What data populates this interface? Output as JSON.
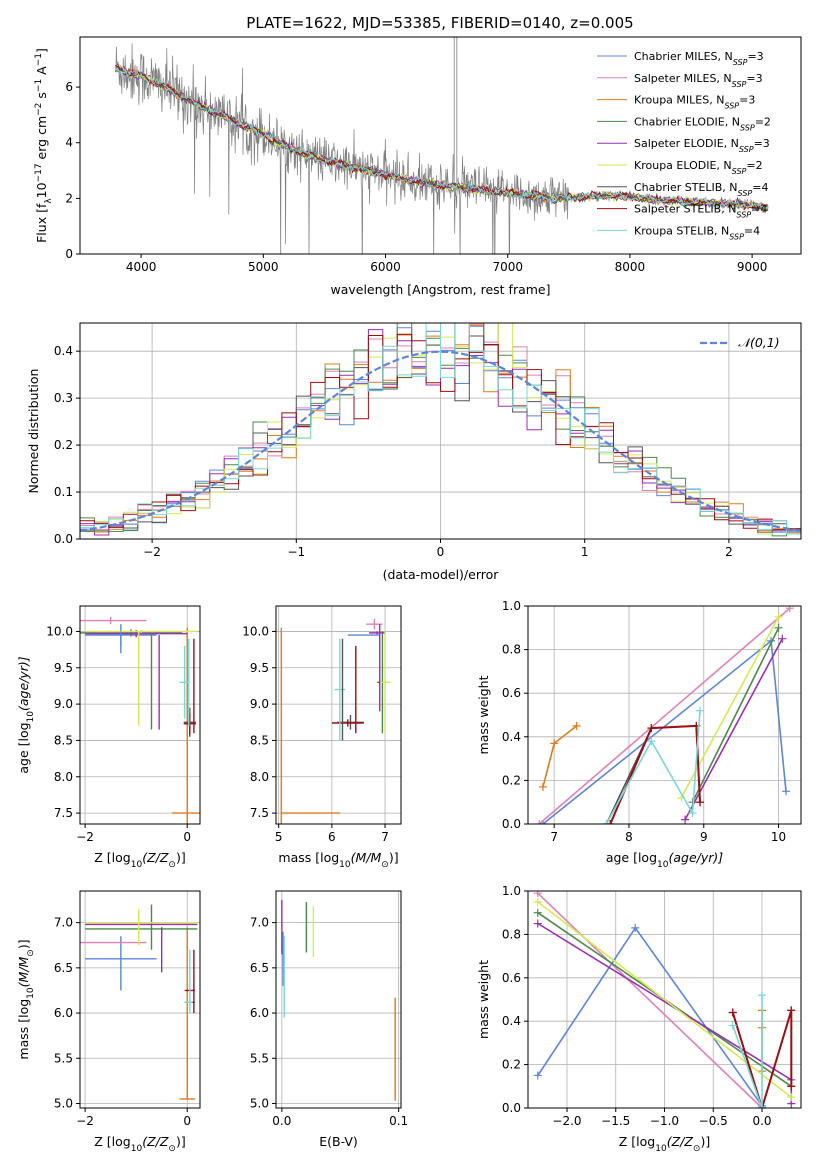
{
  "colors": {
    "Chabrier MILES": "#5b86d9",
    "Salpeter MILES": "#e07fb8",
    "Kroupa MILES": "#e07a1c",
    "Chabrier ELODIE": "#4a8a4a",
    "Salpeter ELODIE": "#9b2fb5",
    "Kroupa ELODIE": "#d6ea52",
    "Chabrier STELIB": "#555555",
    "Salpeter STELIB": "#9e0e12",
    "Kroupa STELIB": "#79d8d8",
    "data": "#808080",
    "normal": "#5b86d9"
  },
  "chart_data": [
    {
      "id": "spectrum",
      "type": "line",
      "title": "PLATE=1622, MJD=53385, FIBERID=0140, z=0.005",
      "xlabel": "wavelength [Angstrom, rest frame]",
      "ylabel": "Flux [f",
      "ylabel_parts": [
        "Flux [f",
        "λ",
        "10",
        "−17",
        " erg cm",
        "−2",
        " s",
        "−1",
        " A",
        "−1",
        "]"
      ],
      "xlim": [
        3500,
        9400
      ],
      "ylim": [
        0,
        7.8
      ],
      "xticks": [
        4000,
        5000,
        6000,
        7000,
        8000,
        9000
      ],
      "yticks": [
        0,
        2,
        4,
        6
      ],
      "legend_placement": "upper-right",
      "legend": [
        {
          "name": "Chabrier MILES",
          "nssp": "3"
        },
        {
          "name": "Salpeter MILES",
          "nssp": "3"
        },
        {
          "name": "Kroupa MILES",
          "nssp": "3"
        },
        {
          "name": "Chabrier ELODIE",
          "nssp": "2"
        },
        {
          "name": "Salpeter ELODIE",
          "nssp": "3"
        },
        {
          "name": "Kroupa ELODIE",
          "nssp": "2"
        },
        {
          "name": "Chabrier STELIB",
          "nssp": "4"
        },
        {
          "name": "Salpeter STELIB",
          "nssp": "4"
        },
        {
          "name": "Kroupa STELIB",
          "nssp": "4"
        }
      ],
      "continuum": {
        "x": [
          3800,
          3900,
          4000,
          4200,
          4400,
          4600,
          4800,
          5000,
          5200,
          5400,
          5600,
          5800,
          6000,
          6200,
          6400,
          6600,
          6800,
          7000,
          7200,
          7400,
          7600,
          7800,
          8000,
          8200,
          8400,
          8600,
          8800,
          9000,
          9100
        ],
        "y": [
          6.7,
          6.5,
          6.4,
          6.0,
          5.5,
          5.1,
          4.7,
          4.3,
          3.85,
          3.5,
          3.25,
          3.05,
          2.85,
          2.65,
          2.5,
          2.4,
          2.3,
          2.2,
          2.1,
          2.0,
          2.05,
          2.1,
          2.05,
          1.95,
          1.9,
          1.85,
          1.8,
          1.75,
          1.65
        ]
      },
      "emission_lines": [
        {
          "x": 6563,
          "y": 7.8
        },
        {
          "x": 6583,
          "y": 7.8
        }
      ]
    },
    {
      "id": "residuals",
      "type": "histogram",
      "xlabel": "(data-model)/error",
      "ylabel": "Normed distribution",
      "xlim": [
        -2.5,
        2.5
      ],
      "ylim": [
        0,
        0.46
      ],
      "xticks": [
        -2,
        -1,
        0,
        1,
        2
      ],
      "yticks": [
        0.0,
        0.1,
        0.2,
        0.3,
        0.4
      ],
      "legend_placement": "upper-right",
      "reference_label": "𝒩(0,1)",
      "bin_width": 0.1
    },
    {
      "id": "age-vs-z",
      "type": "errorbar",
      "xlabel": "Z [log",
      "xlabel_parts": [
        "Z [log",
        "10",
        "(Z/Z",
        "⊙",
        ")]"
      ],
      "ylabel_parts": [
        "age  [log",
        "10",
        "(age/yr)]"
      ],
      "xlim": [
        -2.1,
        0.25
      ],
      "ylim": [
        7.35,
        10.35
      ],
      "xticks": [
        -2,
        0
      ],
      "yticks": [
        7.5,
        8.0,
        8.5,
        9.0,
        9.5,
        10.0
      ],
      "points": [
        {
          "model": "Chabrier MILES",
          "x": -1.3,
          "xerr": 0.7,
          "y": 9.95,
          "yerr": 0.15
        },
        {
          "model": "Salpeter MILES",
          "x": -1.5,
          "xerr": 0.7,
          "y": 10.15,
          "yerr": 0.05
        },
        {
          "model": "Kroupa MILES",
          "x": 0.0,
          "xerr": 0.3,
          "y": 7.5,
          "yerr": 2.55
        },
        {
          "model": "Chabrier ELODIE",
          "x": -1.1,
          "xerr": 1.0,
          "y": 9.98,
          "yerr": 0.05
        },
        {
          "model": "Salpeter ELODIE",
          "x": -1.0,
          "xerr": 1.0,
          "y": 9.97,
          "yerr": 0.05
        },
        {
          "model": "Kroupa ELODIE",
          "x": -0.9,
          "xerr": 1.1,
          "y": 10.0,
          "yerr": 0.02
        },
        {
          "model": "Chabrier STELIB",
          "x": 0.05,
          "xerr": 0.12,
          "y": 8.75,
          "yerr": 0.2
        },
        {
          "model": "Salpeter STELIB",
          "x": 0.05,
          "xerr": 0.12,
          "y": 8.73,
          "yerr": 0.15
        },
        {
          "model": "Kroupa STELIB",
          "x": -0.05,
          "xerr": 0.1,
          "y": 9.3,
          "yerr": 0.5
        },
        {
          "model": "Chabrier ELODIE",
          "x": -0.7,
          "xerr": 0.0,
          "y": 9.3,
          "yerr": 0.65
        },
        {
          "model": "Salpeter ELODIE",
          "x": -0.55,
          "xerr": 0.0,
          "y": 9.3,
          "yerr": 0.65
        },
        {
          "model": "Kroupa ELODIE",
          "x": -0.95,
          "xerr": 0.0,
          "y": 9.35,
          "yerr": 0.65
        },
        {
          "model": "Chabrier MILES",
          "x": -1.3,
          "xerr": 0.0,
          "y": 9.85,
          "yerr": 0.15
        },
        {
          "model": "Salpeter STELIB",
          "x": 0.13,
          "xerr": 0.0,
          "y": 9.25,
          "yerr": 0.65
        },
        {
          "model": "Kroupa STELIB",
          "x": 0.03,
          "xerr": 0.0,
          "y": 9.3,
          "yerr": 0.6
        }
      ]
    },
    {
      "id": "age-vs-mass",
      "type": "errorbar",
      "xlabel_parts": [
        "mass [log",
        "10",
        "(M/M",
        "⊙",
        ")]"
      ],
      "xlim": [
        4.95,
        7.3
      ],
      "ylim": [
        7.35,
        10.35
      ],
      "xticks": [
        5,
        6,
        7
      ],
      "yticks": [
        7.5,
        8.0,
        8.5,
        9.0,
        9.5,
        10.0
      ],
      "points": [
        {
          "model": "Kroupa MILES",
          "x": 5.05,
          "xerr": 0.0,
          "y": 8.7,
          "yerr": 1.35
        },
        {
          "model": "Kroupa MILES",
          "x": 5.6,
          "xerr": 0.55,
          "y": 7.5,
          "yerr": 0.0
        },
        {
          "model": "Chabrier MILES",
          "x": 6.6,
          "xerr": 0.3,
          "y": 9.95,
          "yerr": 0.0
        },
        {
          "model": "Salpeter MILES",
          "x": 6.8,
          "xerr": 0.15,
          "y": 10.1,
          "yerr": 0.07
        },
        {
          "model": "Chabrier ELODIE",
          "x": 6.95,
          "xerr": 0.1,
          "y": 9.3,
          "yerr": 0.7
        },
        {
          "model": "Salpeter ELODIE",
          "x": 6.85,
          "xerr": 0.15,
          "y": 9.98,
          "yerr": 0.02
        },
        {
          "model": "Kroupa ELODIE",
          "x": 7.0,
          "xerr": 0.1,
          "y": 9.3,
          "yerr": 0.7
        },
        {
          "model": "Chabrier STELIB",
          "x": 6.35,
          "xerr": 0.25,
          "y": 8.75,
          "yerr": 0.1
        },
        {
          "model": "Salpeter STELIB",
          "x": 6.3,
          "xerr": 0.3,
          "y": 8.74,
          "yerr": 0.05
        },
        {
          "model": "Salpeter STELIB",
          "x": 6.45,
          "xerr": 0.0,
          "y": 9.2,
          "yerr": 0.6
        },
        {
          "model": "Kroupa STELIB",
          "x": 6.15,
          "xerr": 0.1,
          "y": 9.2,
          "yerr": 0.7
        },
        {
          "model": "Chabrier STELIB",
          "x": 6.2,
          "xerr": 0.0,
          "y": 9.2,
          "yerr": 0.7
        },
        {
          "model": "Salpeter ELODIE",
          "x": 6.9,
          "xerr": 0.0,
          "y": 9.5,
          "yerr": 0.6
        }
      ]
    },
    {
      "id": "weight-vs-age",
      "type": "line",
      "xlabel_parts": [
        "age  [log",
        "10",
        "(age/yr)]"
      ],
      "ylabel": "mass weight",
      "xlim": [
        6.65,
        10.3
      ],
      "ylim": [
        0,
        1.0
      ],
      "xticks": [
        7,
        8,
        9,
        10
      ],
      "yticks": [
        0.0,
        0.2,
        0.4,
        0.6,
        0.8,
        1.0
      ],
      "series": [
        {
          "model": "Chabrier MILES",
          "x": [
            6.85,
            9.9,
            10.1
          ],
          "y": [
            0.0,
            0.84,
            0.15
          ]
        },
        {
          "model": "Salpeter MILES",
          "x": [
            6.8,
            10.15
          ],
          "y": [
            0.0,
            0.99
          ]
        },
        {
          "model": "Kroupa MILES",
          "x": [
            6.85,
            7.0,
            7.3
          ],
          "y": [
            0.17,
            0.37,
            0.45
          ]
        },
        {
          "model": "Chabrier ELODIE",
          "x": [
            8.85,
            10.0
          ],
          "y": [
            0.1,
            0.9
          ]
        },
        {
          "model": "Salpeter ELODIE",
          "x": [
            8.75,
            10.05
          ],
          "y": [
            0.02,
            0.85
          ]
        },
        {
          "model": "Kroupa ELODIE",
          "x": [
            8.7,
            10.0
          ],
          "y": [
            0.12,
            0.95
          ]
        },
        {
          "model": "Chabrier STELIB",
          "x": [
            7.7,
            8.3,
            8.9,
            8.95
          ],
          "y": [
            0.0,
            0.44,
            0.45,
            0.1
          ]
        },
        {
          "model": "Salpeter STELIB",
          "x": [
            7.75,
            8.3,
            8.9,
            8.95
          ],
          "y": [
            0.0,
            0.44,
            0.45,
            0.1
          ]
        },
        {
          "model": "Kroupa STELIB",
          "x": [
            7.7,
            8.3,
            8.85,
            8.95
          ],
          "y": [
            0.0,
            0.38,
            0.05,
            0.52
          ]
        }
      ]
    },
    {
      "id": "mass-vs-z",
      "type": "errorbar",
      "xlabel_parts": [
        "Z [log",
        "10",
        "(Z/Z",
        "⊙",
        ")]"
      ],
      "ylabel_parts": [
        "mass [log",
        "10",
        "(M/M",
        "⊙",
        ")]"
      ],
      "xlim": [
        -2.1,
        0.25
      ],
      "ylim": [
        4.95,
        7.35
      ],
      "xticks": [
        -2,
        0
      ],
      "yticks": [
        5.0,
        5.5,
        6.0,
        6.5,
        7.0
      ],
      "points": [
        {
          "model": "Chabrier MILES",
          "x": -1.3,
          "xerr": 0.7,
          "y": 6.6,
          "yerr": 0.0
        },
        {
          "model": "Chabrier MILES",
          "x": -1.3,
          "xerr": 0.0,
          "y": 6.55,
          "yerr": 0.3
        },
        {
          "model": "Salpeter MILES",
          "x": -1.5,
          "xerr": 0.7,
          "y": 6.78,
          "yerr": 0.0
        },
        {
          "model": "Kroupa MILES",
          "x": 0.0,
          "xerr": 0.15,
          "y": 5.05,
          "yerr": 0.0
        },
        {
          "model": "Kroupa MILES",
          "x": 0.0,
          "xerr": 0.0,
          "y": 6.0,
          "yerr": 0.95
        },
        {
          "model": "Chabrier ELODIE",
          "x": -0.9,
          "xerr": 1.1,
          "y": 6.93,
          "yerr": 0.0
        },
        {
          "model": "Chabrier ELODIE",
          "x": -0.7,
          "xerr": 0.0,
          "y": 6.95,
          "yerr": 0.25
        },
        {
          "model": "Salpeter ELODIE",
          "x": -0.5,
          "xerr": 0.0,
          "y": 6.7,
          "yerr": 0.25
        },
        {
          "model": "Salpeter ELODIE",
          "x": -0.9,
          "xerr": 1.1,
          "y": 6.98,
          "yerr": 0.0
        },
        {
          "model": "Kroupa ELODIE",
          "x": -0.9,
          "xerr": 1.1,
          "y": 7.0,
          "yerr": 0.0
        },
        {
          "model": "Kroupa ELODIE",
          "x": -0.95,
          "xerr": 0.0,
          "y": 6.95,
          "yerr": 0.2
        },
        {
          "model": "Chabrier STELIB",
          "x": 0.05,
          "xerr": 0.1,
          "y": 6.12,
          "yerr": 0.0
        },
        {
          "model": "Salpeter STELIB",
          "x": 0.05,
          "xerr": 0.1,
          "y": 6.25,
          "yerr": 0.0
        },
        {
          "model": "Salpeter STELIB",
          "x": 0.13,
          "xerr": 0.0,
          "y": 6.35,
          "yerr": 0.35
        },
        {
          "model": "Kroupa STELIB",
          "x": 0.02,
          "xerr": 0.08,
          "y": 6.12,
          "yerr": 0.0
        },
        {
          "model": "Kroupa STELIB",
          "x": 0.05,
          "xerr": 0.0,
          "y": 6.35,
          "yerr": 0.35
        }
      ]
    },
    {
      "id": "mass-vs-ebv",
      "type": "errorbar",
      "xlabel": "E(B-V)",
      "xlim": [
        -0.005,
        0.102
      ],
      "ylim": [
        4.95,
        7.35
      ],
      "xticks": [
        0.0,
        0.1
      ],
      "yticks": [
        5.0,
        5.5,
        6.0,
        6.5,
        7.0
      ],
      "points": [
        {
          "model": "Salpeter ELODIE",
          "x": 0.0,
          "xerr": 0.0,
          "y": 6.95,
          "yerr": 0.3
        },
        {
          "model": "Chabrier MILES",
          "x": 0.001,
          "xerr": 0.0,
          "y": 6.6,
          "yerr": 0.3
        },
        {
          "model": "Kroupa STELIB",
          "x": 0.002,
          "xerr": 0.0,
          "y": 6.4,
          "yerr": 0.45
        },
        {
          "model": "Chabrier ELODIE",
          "x": 0.021,
          "xerr": 0.0,
          "y": 6.95,
          "yerr": 0.28
        },
        {
          "model": "Kroupa ELODIE",
          "x": 0.027,
          "xerr": 0.0,
          "y": 6.9,
          "yerr": 0.28
        },
        {
          "model": "Kroupa MILES",
          "x": 0.097,
          "xerr": 0.0,
          "y": 5.6,
          "yerr": 0.57
        }
      ]
    },
    {
      "id": "weight-vs-z",
      "type": "line",
      "xlabel_parts": [
        "Z [log",
        "10",
        "(Z/Z",
        "⊙",
        ")]"
      ],
      "ylabel": "mass weight",
      "xlim": [
        -2.4,
        0.4
      ],
      "ylim": [
        0,
        1.0
      ],
      "xticks": [
        -2.0,
        -1.5,
        -1.0,
        -0.5,
        0.0
      ],
      "yticks": [
        0.0,
        0.2,
        0.4,
        0.6,
        0.8,
        1.0
      ],
      "series": [
        {
          "model": "Chabrier MILES",
          "x": [
            -2.3,
            -1.3,
            0.0,
            0.0
          ],
          "y": [
            0.15,
            0.83,
            0.01,
            0.01
          ]
        },
        {
          "model": "Salpeter MILES",
          "x": [
            -2.3,
            0.0
          ],
          "y": [
            0.99,
            0.0
          ]
        },
        {
          "model": "Kroupa MILES",
          "x": [
            0.0,
            0.0,
            0.0
          ],
          "y": [
            0.45,
            0.37,
            0.17
          ]
        },
        {
          "model": "Chabrier ELODIE",
          "x": [
            -2.3,
            0.3
          ],
          "y": [
            0.9,
            0.1
          ]
        },
        {
          "model": "Salpeter ELODIE",
          "x": [
            -2.3,
            0.3,
            0.3
          ],
          "y": [
            0.85,
            0.13,
            0.02
          ]
        },
        {
          "model": "Kroupa ELODIE",
          "x": [
            -2.3,
            0.3
          ],
          "y": [
            0.95,
            0.05
          ]
        },
        {
          "model": "Chabrier STELIB",
          "x": [
            -0.3,
            0.0,
            0.3,
            0.3
          ],
          "y": [
            0.44,
            0.0,
            0.45,
            0.1
          ]
        },
        {
          "model": "Salpeter STELIB",
          "x": [
            -0.3,
            0.0,
            0.3,
            0.3
          ],
          "y": [
            0.44,
            0.0,
            0.45,
            0.1
          ]
        },
        {
          "model": "Kroupa STELIB",
          "x": [
            -0.3,
            0.0,
            0.0
          ],
          "y": [
            0.38,
            0.0,
            0.52
          ]
        }
      ]
    }
  ]
}
